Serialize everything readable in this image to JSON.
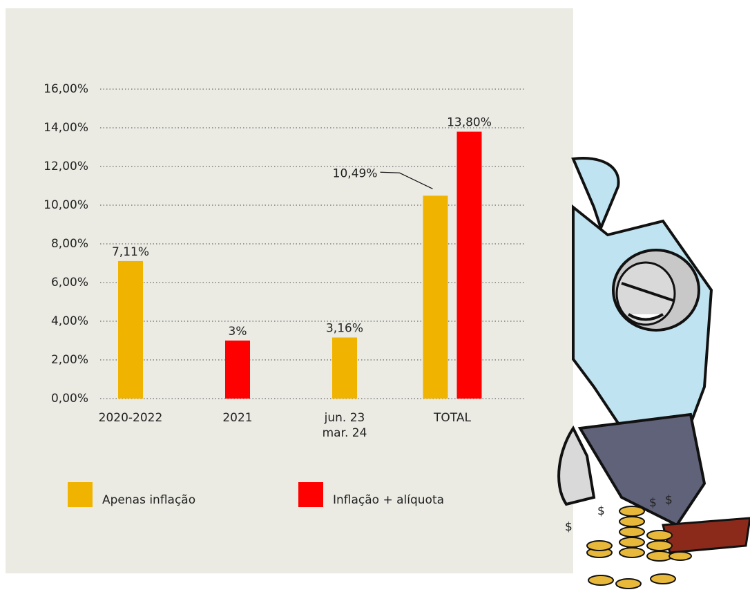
{
  "chart_data": {
    "type": "bar",
    "categories": [
      "2020-2022",
      "2021",
      "jun. 23\nmar. 24",
      "TOTAL"
    ],
    "series": [
      {
        "name": "Apenas inflação",
        "color": "#f0b400",
        "values": [
          7.11,
          null,
          3.16,
          10.49
        ],
        "value_labels": [
          "7,11%",
          null,
          "3,16%",
          "10,49%"
        ]
      },
      {
        "name": "Inflação + alíquota",
        "color": "#ff0000",
        "values": [
          null,
          3,
          null,
          13.8
        ],
        "value_labels": [
          null,
          "3%",
          null,
          "13,80%"
        ]
      }
    ],
    "ylim": [
      0,
      16
    ],
    "yticks": [
      {
        "value": 0,
        "label": "0,00%"
      },
      {
        "value": 2,
        "label": "2,00%"
      },
      {
        "value": 4,
        "label": "4,00%"
      },
      {
        "value": 6,
        "label": "6,00%"
      },
      {
        "value": 8,
        "label": "8,00%"
      },
      {
        "value": 10,
        "label": "10,00%"
      },
      {
        "value": 12,
        "label": "12,00%"
      },
      {
        "value": 14,
        "label": "14,00%"
      },
      {
        "value": 16,
        "label": "16,00%"
      }
    ],
    "grid": true
  }
}
